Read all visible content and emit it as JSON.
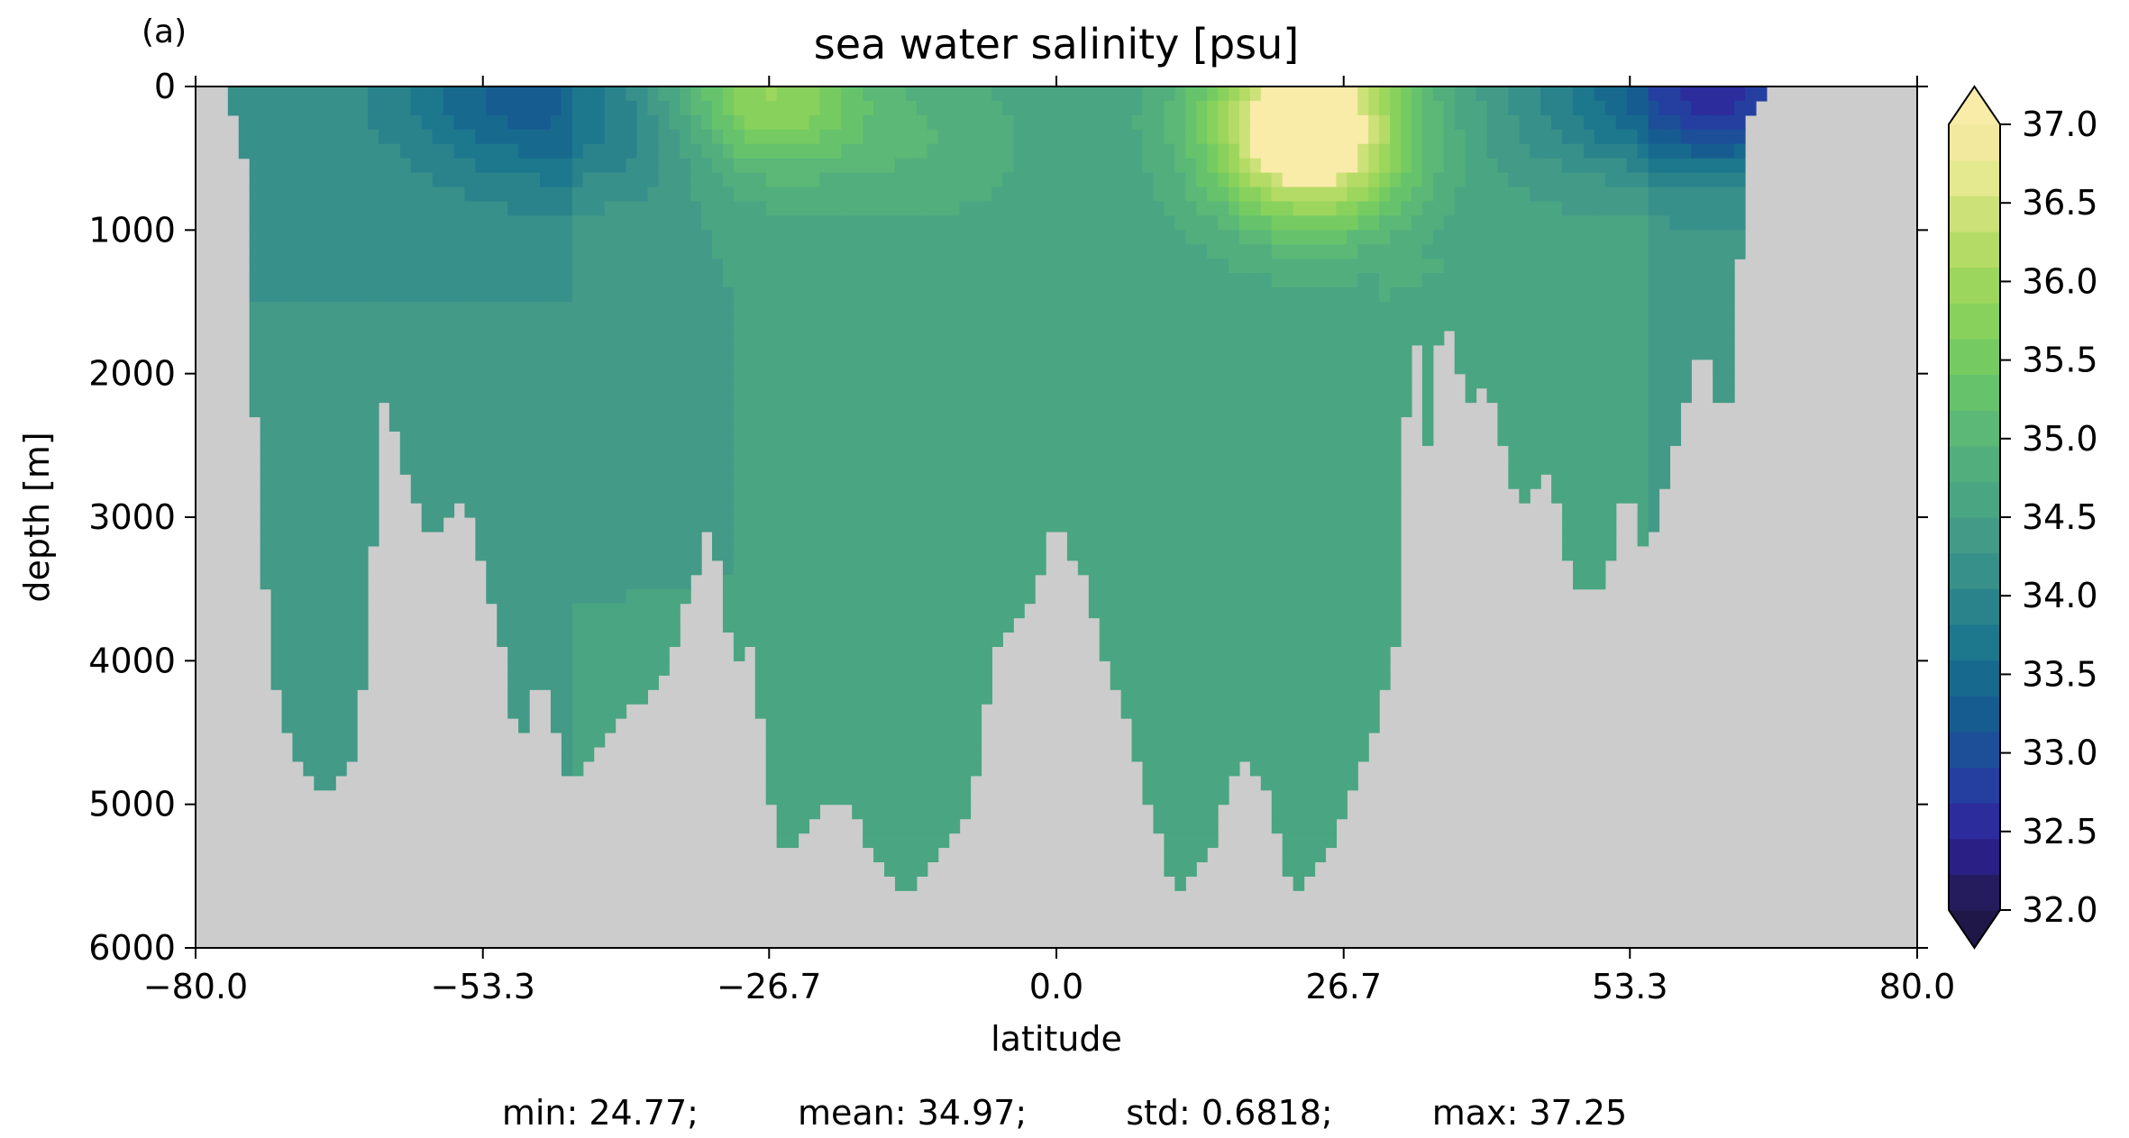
{
  "panel_label": "(a)",
  "chart_data": {
    "type": "heatmap",
    "title": "sea water salinity [psu]",
    "xlabel": "latitude",
    "ylabel": "depth [m]",
    "xlim": [
      -80.0,
      80.0
    ],
    "ylim": [
      6000,
      0
    ],
    "y_inverted": true,
    "xticks": [
      -80.0,
      -53.3,
      -26.7,
      0.0,
      26.7,
      53.3,
      80.0
    ],
    "xtick_labels": [
      "−80.0",
      "−53.3",
      "−26.7",
      "0.0",
      "26.7",
      "53.3",
      "80.0"
    ],
    "yticks": [
      0,
      1000,
      2000,
      3000,
      4000,
      5000,
      6000
    ],
    "ytick_labels": [
      "0",
      "1000",
      "2000",
      "3000",
      "4000",
      "5000",
      "6000"
    ],
    "grid": false,
    "missing_color": "#cccccc",
    "colorbar": {
      "vmin": 32.0,
      "vmax": 37.0,
      "step": 0.25,
      "extend": "both",
      "ticks": [
        32.0,
        32.5,
        33.0,
        33.5,
        34.0,
        34.5,
        35.0,
        35.5,
        36.0,
        36.5,
        37.0
      ],
      "tick_labels": [
        "32.0",
        "32.5",
        "33.0",
        "33.5",
        "34.0",
        "34.5",
        "35.0",
        "35.5",
        "36.0",
        "36.5",
        "37.0"
      ],
      "colors": [
        "#241c5c",
        "#2a1f84",
        "#2c2c9c",
        "#243fa0",
        "#1c4f98",
        "#175c91",
        "#176a8e",
        "#1d778d",
        "#2a838b",
        "#38908a",
        "#439a86",
        "#4aa582",
        "#52ae7c",
        "#5bb876",
        "#66c36c",
        "#75cb62",
        "#88d15c",
        "#9dd65d",
        "#b4db66",
        "#cce178",
        "#e4e88e",
        "#f3e99e"
      ],
      "extend_low_color": "#1e1747",
      "extend_high_color": "#f9eba8"
    },
    "ocean_mask": [
      [
        -76.5,
        200
      ],
      [
        -75.5,
        500
      ],
      [
        -75,
        1000
      ],
      [
        -74.5,
        2300
      ],
      [
        -74,
        3000
      ],
      [
        -73,
        4000
      ],
      [
        -71,
        4600
      ],
      [
        -68,
        4900
      ],
      [
        -65,
        4650
      ],
      [
        -62.5,
        2200
      ],
      [
        -60,
        2800
      ],
      [
        -58,
        3200
      ],
      [
        -55,
        2800
      ],
      [
        -52,
        3700
      ],
      [
        -50,
        4600
      ],
      [
        -48,
        4000
      ],
      [
        -45,
        4900
      ],
      [
        -43,
        4650
      ],
      [
        -40,
        4300
      ],
      [
        -37,
        4200
      ],
      [
        -34,
        3500
      ],
      [
        -32,
        3000
      ],
      [
        -30,
        4000
      ],
      [
        -28,
        3800
      ],
      [
        -27,
        4900
      ],
      [
        -25,
        5400
      ],
      [
        -22,
        5000
      ],
      [
        -19,
        5000
      ],
      [
        -17,
        5400
      ],
      [
        -14,
        5600
      ],
      [
        -12,
        5400
      ],
      [
        -8,
        5000
      ],
      [
        -6,
        4000
      ],
      [
        -2,
        3500
      ],
      [
        0,
        3000
      ],
      [
        3,
        3500
      ],
      [
        5,
        4100
      ],
      [
        7,
        4500
      ],
      [
        9,
        5100
      ],
      [
        11,
        5600
      ],
      [
        14,
        5400
      ],
      [
        17,
        4650
      ],
      [
        20,
        5000
      ],
      [
        22,
        5600
      ],
      [
        25,
        5400
      ],
      [
        27,
        5000
      ],
      [
        29,
        4600
      ],
      [
        32,
        3800
      ],
      [
        33,
        800
      ],
      [
        34,
        2800
      ],
      [
        36,
        1500
      ],
      [
        38,
        2200
      ],
      [
        40,
        2000
      ],
      [
        43,
        2900
      ],
      [
        46,
        2700
      ],
      [
        48,
        3500
      ],
      [
        51,
        3500
      ],
      [
        53,
        2700
      ],
      [
        55,
        3300
      ],
      [
        58,
        2300
      ],
      [
        60,
        1800
      ],
      [
        62,
        2300
      ],
      [
        63,
        2100
      ],
      [
        64,
        300
      ],
      [
        65.5,
        120
      ],
      [
        66.5,
        0
      ]
    ],
    "features": [
      {
        "lat": -27,
        "depth": 80,
        "value": 36.3
      },
      {
        "lat": 23,
        "depth": 150,
        "value": 37.25
      },
      {
        "lat": 24,
        "depth": 600,
        "value": 36.2
      },
      {
        "lat": -12,
        "depth": 400,
        "value": 35.2
      },
      {
        "lat": -40,
        "depth": 300,
        "value": 34.2
      },
      {
        "lat": -50,
        "depth": 700,
        "value": 34.35
      },
      {
        "lat": -65,
        "depth": 900,
        "value": 34.5
      },
      {
        "lat": 48,
        "depth": 150,
        "value": 34.4
      },
      {
        "lat": 60,
        "depth": 100,
        "value": 34.2
      },
      {
        "lat": 65,
        "depth": 60,
        "value": 33.4
      },
      {
        "lat": -50,
        "depth": 30,
        "value": 33.7
      },
      {
        "lat": -58,
        "depth": 40,
        "value": 34.2
      },
      {
        "lat": 56,
        "depth": 30,
        "value": 33.9
      }
    ]
  },
  "stats": {
    "min": "min: 24.77;",
    "mean": "mean: 34.97;",
    "std": "std: 0.6818;",
    "max": "max: 37.25"
  }
}
